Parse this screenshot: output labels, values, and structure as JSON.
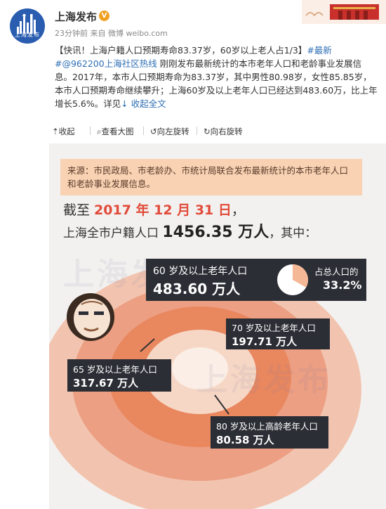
{
  "header": {
    "username": "上海发布",
    "verified_badge": "V",
    "meta": "23分钟前 来自 微博 weibo.com",
    "avatar_text": "上海发布"
  },
  "post": {
    "headline": "【快讯！上海户籍人口预期寿命83.37岁，60岁以上老人占1/3】",
    "topic": "#最新#",
    "mention": "@962200上海社区热线",
    "body": " 刚刚发布最新统计的本市老年人口和老龄事业发展信息。2017年，本市人口预期寿命为83.37岁，其中男性80.98岁，女性85.85岁，本市人口预期寿命继续攀升；上海60岁及以上老年人口已经达到483.60万，比上年增长5.6%。详见",
    "collapse_link": "↓ 收起全文"
  },
  "actions": {
    "collapse": "收起",
    "view_large": "查看大图",
    "rotate_left": "向左旋转",
    "rotate_right": "向右旋转"
  },
  "infographic": {
    "source": "来源：市民政局、市老龄办、市统计局联合发布最新统计的本市老年人口和老龄事业发展信息。",
    "as_of_prefix": "截至 ",
    "as_of_date": "2017 年 12 月 31 日",
    "as_of_suffix": "，",
    "population_prefix": "上海全市户籍人口 ",
    "population_value": "1456.35 万人",
    "population_suffix": "，其中：",
    "card_60_label": "60 岁及以上老年人口",
    "card_60_value": "483.60 万人",
    "share_label": "占总人口的",
    "share_value": "33.2%",
    "share_fraction": 0.332,
    "card_70_label": "70 岁及以上老年人口",
    "card_70_value": "197.71 万人",
    "card_65_label": "65 岁及以上老年人口",
    "card_65_value": "317.67 万人",
    "card_80_label": "80 岁及以上高龄老年人口",
    "card_80_value": "80.58 万人",
    "watermark": "上海发布"
  },
  "colors": {
    "link_blue": "#2f6fb5",
    "date_red": "#e14b3a",
    "ring_outer": "#f2c4b0",
    "ring_2": "#ec9f83",
    "ring_3": "#e9875f",
    "ring_4": "#f6d7c5",
    "card_bg": "#2b2e35",
    "pie_fill": "#f4b896"
  }
}
